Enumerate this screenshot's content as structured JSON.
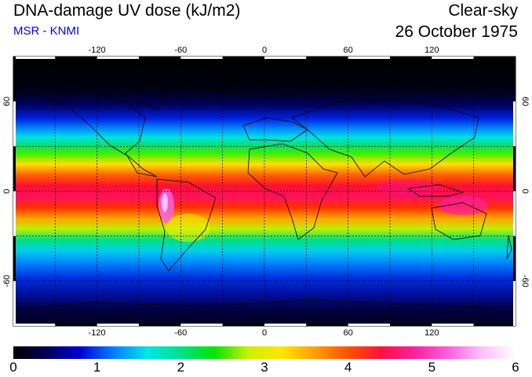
{
  "header": {
    "title": "DNA-damage UV dose (kJ/m2)",
    "subtitle": "MSR - KNMI",
    "condition": "Clear-sky",
    "date": "26 October 1975"
  },
  "colors": {
    "subtitle": "#0000ff",
    "scale": [
      "#000000",
      "#00005a",
      "#0000dc",
      "#0080ff",
      "#00e6e6",
      "#00e08c",
      "#00e600",
      "#c8f000",
      "#ffe600",
      "#ffa000",
      "#ff5000",
      "#ff1040",
      "#ff20a0",
      "#ff60e0",
      "#ffc0ff",
      "#ffffff"
    ]
  },
  "map": {
    "projection": "equirectangular",
    "lon_ticks": [
      "-120",
      "-60",
      "0",
      "60",
      "120"
    ],
    "lat_ticks": [
      "60",
      "0",
      "-60"
    ],
    "grid": "dashed 30 degrees"
  },
  "colorbar": {
    "min": 0,
    "max": 6,
    "labels": [
      "0",
      "1",
      "2",
      "3",
      "4",
      "5",
      "6"
    ]
  }
}
